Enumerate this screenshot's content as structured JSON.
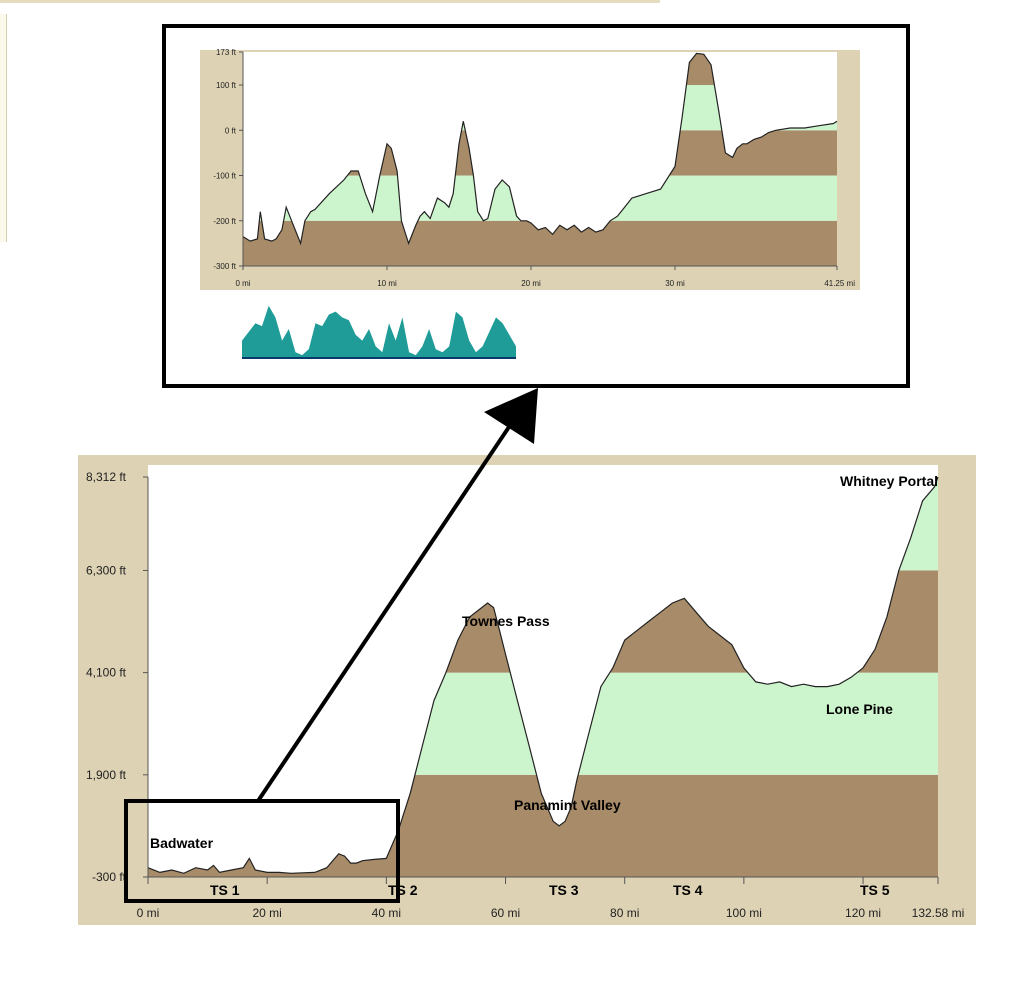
{
  "colors": {
    "frame": "#ddd2b4",
    "dirt": "#a88b68",
    "mint": "#cdf5cd",
    "teal": "#1f9c98",
    "line": "#222222"
  },
  "inset_chart": {
    "y_ticks": [
      "173 ft",
      "100 ft",
      "0 ft",
      "-100 ft",
      "-200 ft",
      "-300 ft"
    ],
    "x_ticks": [
      "0 mi",
      "10 mi",
      "20 mi",
      "30 mi",
      "41.25 mi"
    ]
  },
  "main_chart": {
    "y_ticks": [
      "8,312 ft",
      "6,300 ft",
      "4,100 ft",
      "1,900 ft",
      "-300 ft"
    ],
    "x_ticks": [
      "0 mi",
      "20 mi",
      "40 mi",
      "60 mi",
      "80 mi",
      "100 mi",
      "120 mi",
      "132.58 mi"
    ],
    "places": {
      "badwater": "Badwater",
      "townes_pass": "Townes Pass",
      "panamint_valley": "Panamint Valley",
      "lone_pine": "Lone Pine",
      "whitney_portal": "Whitney Portal"
    },
    "stations": [
      "TS 1",
      "TS 2",
      "TS 3",
      "TS 4",
      "TS 5"
    ]
  },
  "chart_data": [
    {
      "type": "area",
      "title": "",
      "xlabel": "",
      "ylabel": "",
      "xlim": [
        0,
        41.25
      ],
      "ylim": [
        -300,
        173
      ],
      "x_ticks": [
        0,
        10,
        20,
        30,
        41.25
      ],
      "y_ticks": [
        173,
        100,
        0,
        -100,
        -200,
        -300
      ],
      "bands": [
        {
          "from": -300,
          "to": -200,
          "color": "#a88b68"
        },
        {
          "from": -200,
          "to": -100,
          "color": "#cdf5cd"
        },
        {
          "from": -100,
          "to": 0,
          "color": "#a88b68"
        },
        {
          "from": 0,
          "to": 100,
          "color": "#cdf5cd"
        },
        {
          "from": 100,
          "to": 173,
          "color": "#a88b68"
        }
      ],
      "x": [
        0,
        0.5,
        1,
        1.2,
        1.5,
        2,
        2.3,
        2.7,
        3,
        3.5,
        4,
        4.3,
        4.7,
        5,
        6,
        7,
        7.5,
        8,
        8.5,
        9,
        9.5,
        10,
        10.3,
        10.7,
        11,
        11.5,
        12,
        12.3,
        12.6,
        13,
        13.5,
        14,
        14.3,
        14.6,
        15,
        15.3,
        15.7,
        16,
        16.3,
        16.7,
        17,
        17.5,
        18,
        18.5,
        19,
        19.3,
        19.7,
        20,
        20.5,
        21,
        21.5,
        22,
        22.5,
        23,
        23.5,
        24,
        24.5,
        25,
        25.5,
        26,
        26.5,
        27,
        28,
        29,
        30,
        30.5,
        31,
        31.5,
        32,
        32.5,
        33,
        33.5,
        34,
        34.3,
        34.7,
        35,
        35.5,
        36,
        36.5,
        37,
        38,
        39,
        40,
        41,
        41.25
      ],
      "y": [
        -235,
        -245,
        -240,
        -180,
        -240,
        -245,
        -240,
        -220,
        -170,
        -210,
        -250,
        -200,
        -180,
        -175,
        -140,
        -110,
        -90,
        -90,
        -140,
        -180,
        -100,
        -30,
        -40,
        -90,
        -200,
        -250,
        -210,
        -190,
        -180,
        -195,
        -150,
        -160,
        -170,
        -140,
        -30,
        20,
        -40,
        -100,
        -180,
        -200,
        -195,
        -130,
        -110,
        -125,
        -190,
        -200,
        -200,
        -205,
        -220,
        -215,
        -230,
        -210,
        -220,
        -210,
        -225,
        -215,
        -225,
        -220,
        -200,
        -190,
        -170,
        -150,
        -140,
        -130,
        -80,
        30,
        150,
        170,
        168,
        145,
        50,
        -50,
        -60,
        -40,
        -30,
        -30,
        -20,
        -15,
        -5,
        0,
        5,
        5,
        10,
        15,
        20
      ],
      "series": []
    },
    {
      "type": "area",
      "title": "",
      "xlabel": "",
      "ylabel": "",
      "x": [
        0,
        2,
        3,
        4,
        5,
        6,
        7,
        8,
        9,
        10,
        11,
        12,
        13,
        14,
        15,
        16,
        17,
        18,
        19,
        20,
        21,
        22,
        23,
        24,
        25,
        26,
        27,
        28,
        29,
        30,
        31,
        32,
        33,
        34,
        35,
        36,
        37,
        38,
        39,
        40,
        41
      ],
      "y": [
        0.3,
        0.6,
        0.55,
        0.9,
        0.7,
        0.3,
        0.5,
        0.1,
        0.05,
        0.15,
        0.6,
        0.55,
        0.75,
        0.8,
        0.7,
        0.65,
        0.4,
        0.3,
        0.5,
        0.2,
        0.1,
        0.6,
        0.3,
        0.7,
        0.1,
        0.05,
        0.2,
        0.5,
        0.15,
        0.1,
        0.2,
        0.8,
        0.7,
        0.3,
        0.1,
        0.2,
        0.45,
        0.7,
        0.6,
        0.4,
        0.2
      ],
      "series": []
    },
    {
      "type": "area",
      "title": "",
      "xlabel": "",
      "ylabel": "",
      "xlim": [
        0,
        132.58
      ],
      "ylim": [
        -300,
        8312
      ],
      "x_ticks": [
        0,
        20,
        40,
        60,
        80,
        100,
        120,
        132.58
      ],
      "y_ticks": [
        8312,
        6300,
        4100,
        1900,
        -300
      ],
      "bands": [
        {
          "from": -300,
          "to": 1900,
          "color": "#a88b68"
        },
        {
          "from": 1900,
          "to": 4100,
          "color": "#cdf5cd"
        },
        {
          "from": 4100,
          "to": 6300,
          "color": "#a88b68"
        },
        {
          "from": 6300,
          "to": 8312,
          "color": "#cdf5cd"
        }
      ],
      "x": [
        0,
        2,
        4,
        6,
        8,
        10,
        11,
        12,
        14,
        16,
        17,
        18,
        20,
        22,
        24,
        26,
        28,
        30,
        31,
        32,
        33,
        34,
        35,
        36,
        38,
        40,
        42,
        44,
        46,
        48,
        50,
        52,
        54,
        56,
        57,
        58,
        59,
        60,
        62,
        64,
        66,
        68,
        69,
        70,
        71,
        72,
        74,
        76,
        78,
        80,
        82,
        84,
        86,
        88,
        90,
        92,
        94,
        96,
        98,
        100,
        102,
        104,
        106,
        108,
        110,
        112,
        114,
        116,
        118,
        120,
        122,
        124,
        126,
        128,
        130,
        132,
        132.58
      ],
      "y": [
        -100,
        -200,
        -150,
        -220,
        -100,
        -150,
        -50,
        -200,
        -150,
        -100,
        100,
        -150,
        -200,
        -200,
        -220,
        -210,
        -200,
        -100,
        50,
        200,
        150,
        0,
        0,
        50,
        80,
        100,
        700,
        1500,
        2500,
        3500,
        4100,
        4800,
        5300,
        5500,
        5600,
        5500,
        5000,
        4500,
        3500,
        2500,
        1500,
        900,
        800,
        900,
        1200,
        1800,
        2800,
        3800,
        4200,
        4800,
        5000,
        5200,
        5400,
        5600,
        5700,
        5400,
        5100,
        4900,
        4700,
        4200,
        3900,
        3850,
        3900,
        3800,
        3850,
        3800,
        3800,
        3850,
        4000,
        4200,
        4600,
        5300,
        6300,
        7000,
        7800,
        8100,
        8312
      ],
      "series": []
    }
  ]
}
